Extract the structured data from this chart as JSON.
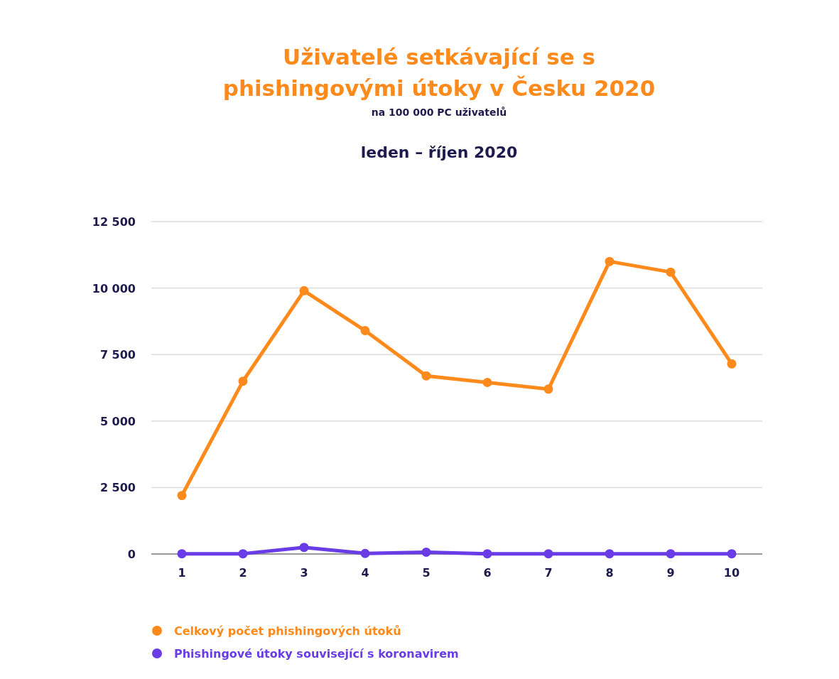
{
  "chart_data": {
    "type": "line",
    "title": "Uživatelé setkávající se s phishingovými útoky v Česku 2020",
    "subtitle": "na 100 000 PC uživatelů",
    "annotations": [
      "leden – říjen 2020"
    ],
    "categories": [
      "1",
      "2",
      "3",
      "4",
      "5",
      "6",
      "7",
      "8",
      "9",
      "10"
    ],
    "series": [
      {
        "name": "Celkový počet phishingových útoků",
        "color": "#ff8a1c",
        "values": [
          2200,
          6500,
          9900,
          8400,
          6700,
          6450,
          6200,
          11000,
          10600,
          7150
        ]
      },
      {
        "name": "Phishingové útoky související s koronavirem",
        "color": "#6a3ce6",
        "values": [
          10,
          10,
          250,
          20,
          70,
          10,
          10,
          10,
          10,
          10
        ]
      }
    ],
    "ylim": [
      0,
      12500
    ],
    "yticks": [
      {
        "value": 0,
        "label": "0"
      },
      {
        "value": 2500,
        "label": "2 500"
      },
      {
        "value": 5000,
        "label": "5 000"
      },
      {
        "value": 7500,
        "label": "7 500"
      },
      {
        "value": 10000,
        "label": "10 000"
      },
      {
        "value": 12500,
        "label": "12 500"
      }
    ],
    "grid": "y",
    "legend": "bottom left",
    "marker": "circle",
    "line_style": "solid"
  }
}
